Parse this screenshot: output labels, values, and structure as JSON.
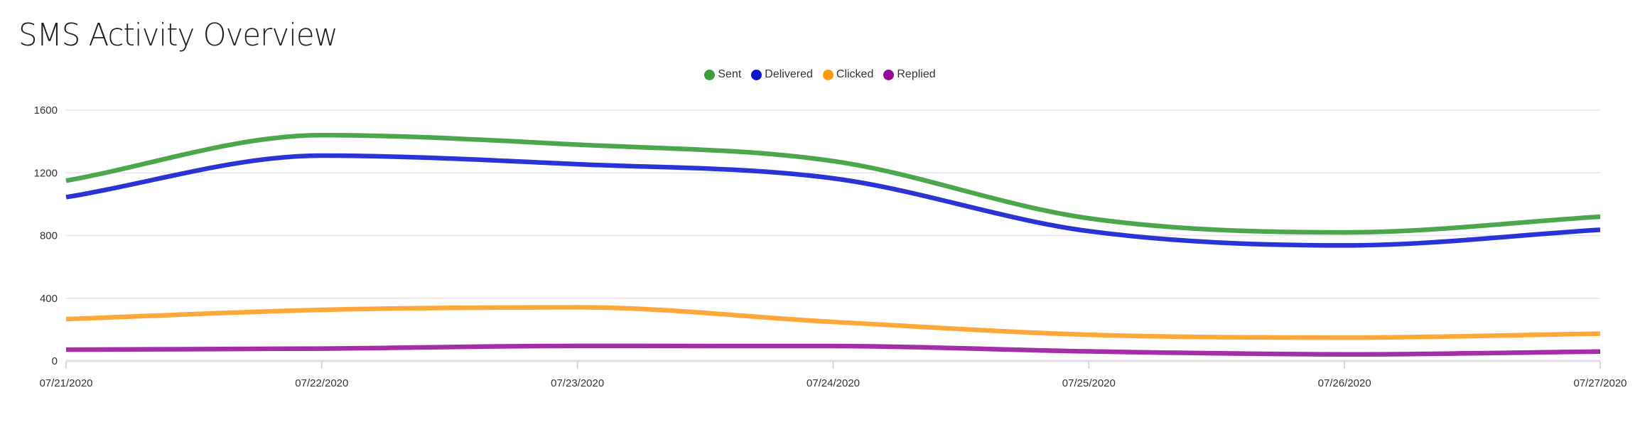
{
  "chart_data": {
    "type": "line",
    "title": "SMS Activity Overview",
    "xlabel": "",
    "ylabel": "",
    "categories": [
      "07/21/2020",
      "07/22/2020",
      "07/23/2020",
      "07/24/2020",
      "07/25/2020",
      "07/26/2020",
      "07/27/2020"
    ],
    "ylim": [
      0,
      1600
    ],
    "yticks": [
      "0",
      "400",
      "800",
      "1200",
      "1600"
    ],
    "grid": true,
    "legend": "top-center",
    "series": [
      {
        "name": "Sent",
        "color": "#4ca64c",
        "legend_color": "#3a9e3a",
        "values": [
          1150,
          1440,
          1380,
          1275,
          910,
          820,
          920
        ]
      },
      {
        "name": "Delivered",
        "color": "#2a33d6",
        "legend_color": "#0a14cc",
        "values": [
          1045,
          1310,
          1255,
          1165,
          828,
          737,
          837
        ]
      },
      {
        "name": "Clicked",
        "color": "#ffa83a",
        "legend_color": "#ff9a10",
        "values": [
          267,
          326,
          342,
          249,
          167,
          149,
          174
        ]
      },
      {
        "name": "Replied",
        "color": "#a52ea8",
        "legend_color": "#960a99",
        "values": [
          72,
          79,
          96,
          95,
          61,
          42,
          60
        ]
      }
    ]
  }
}
